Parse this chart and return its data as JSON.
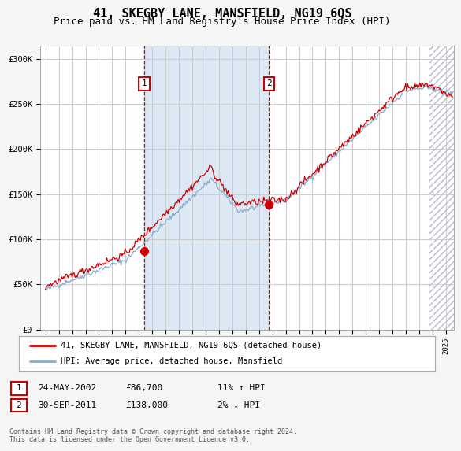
{
  "title": "41, SKEGBY LANE, MANSFIELD, NG19 6QS",
  "subtitle": "Price paid vs. HM Land Registry's House Price Index (HPI)",
  "title_fontsize": 11,
  "subtitle_fontsize": 9,
  "ylabel_ticks": [
    "£0",
    "£50K",
    "£100K",
    "£150K",
    "£200K",
    "£250K",
    "£300K"
  ],
  "ytick_vals": [
    0,
    50000,
    100000,
    150000,
    200000,
    250000,
    300000
  ],
  "ylim": [
    0,
    315000
  ],
  "bg_color": "#f5f5f5",
  "plot_bg": "#ffffff",
  "grid_color": "#cccccc",
  "shade_color": "#dde8f5",
  "line_color_red": "#cc0000",
  "line_color_blue": "#88aacc",
  "sale1_x": 2002.4,
  "sale1_y": 86700,
  "sale2_x": 2011.75,
  "sale2_y": 138000,
  "legend_label1": "41, SKEGBY LANE, MANSFIELD, NG19 6QS (detached house)",
  "legend_label2": "HPI: Average price, detached house, Mansfield",
  "table_row1": [
    "1",
    "24-MAY-2002",
    "£86,700",
    "11% ↑ HPI"
  ],
  "table_row2": [
    "2",
    "30-SEP-2011",
    "£138,000",
    "2% ↓ HPI"
  ],
  "footer": "Contains HM Land Registry data © Crown copyright and database right 2024.\nThis data is licensed under the Open Government Licence v3.0.",
  "hatch_start_x": 2023.75,
  "xmin": 1994.6,
  "xmax": 2025.6
}
